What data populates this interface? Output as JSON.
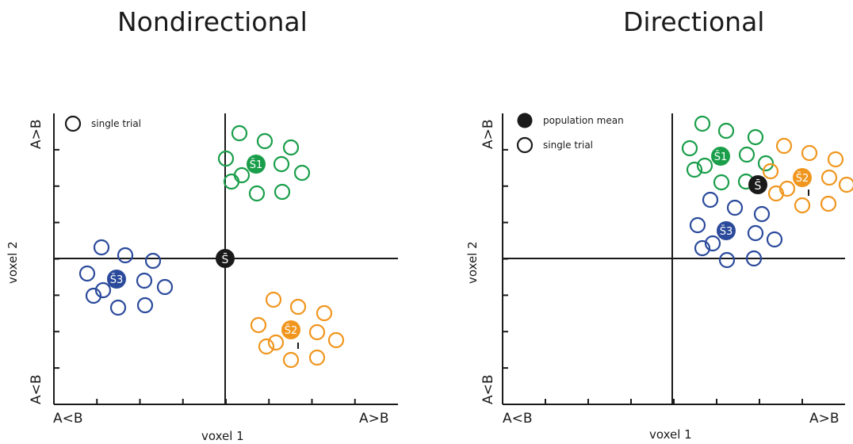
{
  "panels": [
    {
      "id": "nondirectional",
      "title": "Nondirectional",
      "x_axis": {
        "label": "voxel 1",
        "left": "A<B",
        "right": "A>B"
      },
      "y_axis": {
        "label": "voxel 2",
        "top": "A>B",
        "bottom": "A<B"
      },
      "legend": [
        {
          "label": "single trial",
          "symbol": "open-circle"
        }
      ],
      "origin_marker": "S̄",
      "clusters": [
        {
          "name": "S̄1",
          "color": "#1a9e4a",
          "position": "upper-right"
        },
        {
          "name": "S̄2",
          "color": "#f0961e",
          "position": "lower-right"
        },
        {
          "name": "S̄3",
          "color": "#2b4a9b",
          "position": "left"
        }
      ]
    },
    {
      "id": "directional",
      "title": "Directional",
      "x_axis": {
        "label": "voxel 1",
        "left": "A<B",
        "right": "A>B"
      },
      "y_axis": {
        "label": "voxel 2",
        "top": "A>B",
        "bottom": "A<B"
      },
      "legend": [
        {
          "label": "population mean",
          "symbol": "filled-circle"
        },
        {
          "label": "single trial",
          "symbol": "open-circle"
        }
      ],
      "origin_marker": "S̄",
      "clusters": [
        {
          "name": "S̄1",
          "color": "#1a9e4a",
          "position": "upper-right"
        },
        {
          "name": "S̄2",
          "color": "#f0961e",
          "position": "upper-right"
        },
        {
          "name": "S̄3",
          "color": "#2b4a9b",
          "position": "upper-right"
        }
      ]
    }
  ]
}
